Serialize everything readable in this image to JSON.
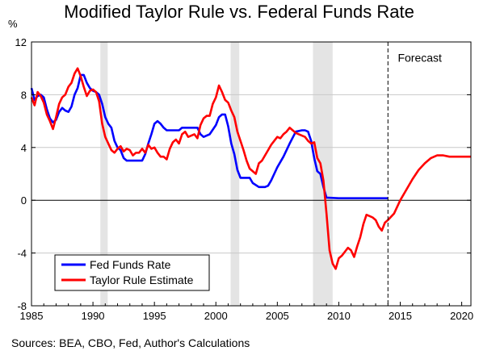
{
  "source_note": "Sources: BEA, CBO, Fed, Author's Calculations",
  "chart_data": {
    "type": "line",
    "title": "Modified Taylor Rule vs. Federal Funds Rate",
    "ylabel": "%",
    "xlabel": "",
    "xlim": [
      1985,
      2020.75
    ],
    "ylim": [
      -8,
      12
    ],
    "yticks": [
      -8,
      -4,
      0,
      4,
      8,
      12
    ],
    "xticks": [
      1985,
      1990,
      1995,
      2000,
      2005,
      2010,
      2015,
      2020
    ],
    "recessions": [
      [
        1990.6,
        1991.2
      ],
      [
        2001.2,
        2001.9
      ],
      [
        2007.9,
        2009.5
      ]
    ],
    "forecast_start": 2014.0,
    "annotations": [
      {
        "text": "Forecast",
        "x": 2014.8,
        "y": 10.8
      }
    ],
    "legend": {
      "position": "bottom-left"
    },
    "series": [
      {
        "name": "Fed Funds Rate",
        "color": "#0000ff",
        "points": [
          [
            1985.0,
            8.5
          ],
          [
            1985.25,
            7.6
          ],
          [
            1985.5,
            7.9
          ],
          [
            1985.75,
            8.0
          ],
          [
            1986.0,
            7.8
          ],
          [
            1986.25,
            6.9
          ],
          [
            1986.5,
            6.2
          ],
          [
            1986.75,
            5.9
          ],
          [
            1987.0,
            6.1
          ],
          [
            1987.25,
            6.7
          ],
          [
            1987.5,
            7.0
          ],
          [
            1987.75,
            6.8
          ],
          [
            1988.0,
            6.7
          ],
          [
            1988.25,
            7.1
          ],
          [
            1988.5,
            8.0
          ],
          [
            1988.75,
            8.5
          ],
          [
            1989.0,
            9.5
          ],
          [
            1989.25,
            9.5
          ],
          [
            1989.5,
            8.9
          ],
          [
            1989.75,
            8.5
          ],
          [
            1990.0,
            8.3
          ],
          [
            1990.25,
            8.2
          ],
          [
            1990.5,
            8.0
          ],
          [
            1990.75,
            7.3
          ],
          [
            1991.0,
            6.3
          ],
          [
            1991.25,
            5.8
          ],
          [
            1991.5,
            5.5
          ],
          [
            1991.75,
            4.5
          ],
          [
            1992.0,
            4.0
          ],
          [
            1992.25,
            3.8
          ],
          [
            1992.5,
            3.2
          ],
          [
            1992.75,
            3.0
          ],
          [
            1993.0,
            3.0
          ],
          [
            1993.5,
            3.0
          ],
          [
            1994.0,
            3.0
          ],
          [
            1994.25,
            3.5
          ],
          [
            1994.5,
            4.3
          ],
          [
            1994.75,
            5.0
          ],
          [
            1995.0,
            5.8
          ],
          [
            1995.25,
            6.0
          ],
          [
            1995.5,
            5.8
          ],
          [
            1995.75,
            5.5
          ],
          [
            1996.0,
            5.3
          ],
          [
            1996.5,
            5.3
          ],
          [
            1997.0,
            5.3
          ],
          [
            1997.25,
            5.5
          ],
          [
            1998.0,
            5.5
          ],
          [
            1998.5,
            5.5
          ],
          [
            1998.75,
            5.0
          ],
          [
            1999.0,
            4.8
          ],
          [
            1999.5,
            5.0
          ],
          [
            2000.0,
            5.7
          ],
          [
            2000.25,
            6.3
          ],
          [
            2000.5,
            6.5
          ],
          [
            2000.75,
            6.5
          ],
          [
            2001.0,
            5.6
          ],
          [
            2001.25,
            4.3
          ],
          [
            2001.5,
            3.5
          ],
          [
            2001.75,
            2.3
          ],
          [
            2002.0,
            1.7
          ],
          [
            2002.5,
            1.7
          ],
          [
            2002.75,
            1.7
          ],
          [
            2003.0,
            1.3
          ],
          [
            2003.5,
            1.0
          ],
          [
            2004.0,
            1.0
          ],
          [
            2004.25,
            1.1
          ],
          [
            2004.5,
            1.5
          ],
          [
            2004.75,
            2.0
          ],
          [
            2005.0,
            2.5
          ],
          [
            2005.5,
            3.3
          ],
          [
            2006.0,
            4.3
          ],
          [
            2006.5,
            5.2
          ],
          [
            2007.0,
            5.3
          ],
          [
            2007.25,
            5.3
          ],
          [
            2007.5,
            5.2
          ],
          [
            2007.75,
            4.5
          ],
          [
            2008.0,
            3.2
          ],
          [
            2008.25,
            2.2
          ],
          [
            2008.5,
            2.0
          ],
          [
            2008.75,
            1.0
          ],
          [
            2009.0,
            0.2
          ],
          [
            2010.0,
            0.15
          ],
          [
            2012.0,
            0.15
          ],
          [
            2014.0,
            0.15
          ]
        ]
      },
      {
        "name": "Taylor Rule Estimate",
        "color": "#ff0000",
        "points": [
          [
            1985.0,
            7.8
          ],
          [
            1985.25,
            7.2
          ],
          [
            1985.5,
            8.2
          ],
          [
            1985.75,
            7.9
          ],
          [
            1986.0,
            7.4
          ],
          [
            1986.25,
            6.5
          ],
          [
            1986.5,
            6.0
          ],
          [
            1986.75,
            5.4
          ],
          [
            1987.0,
            6.3
          ],
          [
            1987.25,
            7.3
          ],
          [
            1987.5,
            7.8
          ],
          [
            1987.75,
            8.0
          ],
          [
            1988.0,
            8.6
          ],
          [
            1988.25,
            8.9
          ],
          [
            1988.5,
            9.6
          ],
          [
            1988.75,
            10.0
          ],
          [
            1989.0,
            9.4
          ],
          [
            1989.25,
            8.6
          ],
          [
            1989.5,
            7.9
          ],
          [
            1989.75,
            8.3
          ],
          [
            1990.0,
            8.4
          ],
          [
            1990.25,
            8.2
          ],
          [
            1990.5,
            7.5
          ],
          [
            1990.75,
            5.8
          ],
          [
            1991.0,
            4.8
          ],
          [
            1991.25,
            4.3
          ],
          [
            1991.5,
            3.8
          ],
          [
            1991.75,
            3.6
          ],
          [
            1992.0,
            3.9
          ],
          [
            1992.25,
            4.1
          ],
          [
            1992.5,
            3.7
          ],
          [
            1992.75,
            3.9
          ],
          [
            1993.0,
            3.8
          ],
          [
            1993.25,
            3.4
          ],
          [
            1993.5,
            3.6
          ],
          [
            1993.75,
            3.6
          ],
          [
            1994.0,
            3.9
          ],
          [
            1994.25,
            3.6
          ],
          [
            1994.5,
            4.2
          ],
          [
            1994.75,
            3.9
          ],
          [
            1995.0,
            4.0
          ],
          [
            1995.25,
            3.6
          ],
          [
            1995.5,
            3.3
          ],
          [
            1995.75,
            3.3
          ],
          [
            1996.0,
            3.1
          ],
          [
            1996.25,
            3.9
          ],
          [
            1996.5,
            4.4
          ],
          [
            1996.75,
            4.6
          ],
          [
            1997.0,
            4.3
          ],
          [
            1997.25,
            5.0
          ],
          [
            1997.5,
            5.2
          ],
          [
            1997.75,
            4.8
          ],
          [
            1998.0,
            4.9
          ],
          [
            1998.25,
            5.0
          ],
          [
            1998.5,
            4.7
          ],
          [
            1998.75,
            5.7
          ],
          [
            1999.0,
            6.2
          ],
          [
            1999.25,
            6.4
          ],
          [
            1999.5,
            6.4
          ],
          [
            1999.75,
            7.3
          ],
          [
            2000.0,
            7.8
          ],
          [
            2000.25,
            8.7
          ],
          [
            2000.5,
            8.2
          ],
          [
            2000.75,
            7.6
          ],
          [
            2001.0,
            7.4
          ],
          [
            2001.25,
            6.8
          ],
          [
            2001.5,
            6.3
          ],
          [
            2001.75,
            5.2
          ],
          [
            2002.0,
            4.5
          ],
          [
            2002.25,
            3.8
          ],
          [
            2002.5,
            3.0
          ],
          [
            2002.75,
            2.4
          ],
          [
            2003.0,
            2.2
          ],
          [
            2003.25,
            2.0
          ],
          [
            2003.5,
            2.8
          ],
          [
            2003.75,
            3.0
          ],
          [
            2004.0,
            3.4
          ],
          [
            2004.25,
            3.8
          ],
          [
            2004.5,
            4.2
          ],
          [
            2004.75,
            4.5
          ],
          [
            2005.0,
            4.8
          ],
          [
            2005.25,
            4.7
          ],
          [
            2005.5,
            5.0
          ],
          [
            2005.75,
            5.2
          ],
          [
            2006.0,
            5.5
          ],
          [
            2006.25,
            5.3
          ],
          [
            2006.5,
            5.1
          ],
          [
            2006.75,
            5.0
          ],
          [
            2007.0,
            4.9
          ],
          [
            2007.25,
            4.8
          ],
          [
            2007.5,
            4.5
          ],
          [
            2007.75,
            4.3
          ],
          [
            2008.0,
            4.4
          ],
          [
            2008.25,
            3.2
          ],
          [
            2008.5,
            2.8
          ],
          [
            2008.75,
            1.5
          ],
          [
            2009.0,
            -1.0
          ],
          [
            2009.25,
            -3.8
          ],
          [
            2009.5,
            -4.8
          ],
          [
            2009.75,
            -5.2
          ],
          [
            2010.0,
            -4.4
          ],
          [
            2010.25,
            -4.2
          ],
          [
            2010.5,
            -3.9
          ],
          [
            2010.75,
            -3.6
          ],
          [
            2011.0,
            -3.8
          ],
          [
            2011.25,
            -4.3
          ],
          [
            2011.5,
            -3.5
          ],
          [
            2011.75,
            -2.8
          ],
          [
            2012.0,
            -1.8
          ],
          [
            2012.25,
            -1.1
          ],
          [
            2012.5,
            -1.2
          ],
          [
            2012.75,
            -1.3
          ],
          [
            2013.0,
            -1.5
          ],
          [
            2013.25,
            -2.0
          ],
          [
            2013.5,
            -2.3
          ],
          [
            2013.75,
            -1.7
          ],
          [
            2014.0,
            -1.5
          ],
          [
            2014.5,
            -1.0
          ],
          [
            2015.0,
            0.0
          ],
          [
            2015.5,
            0.8
          ],
          [
            2016.0,
            1.6
          ],
          [
            2016.5,
            2.3
          ],
          [
            2017.0,
            2.8
          ],
          [
            2017.5,
            3.2
          ],
          [
            2018.0,
            3.4
          ],
          [
            2018.5,
            3.4
          ],
          [
            2019.0,
            3.3
          ],
          [
            2019.5,
            3.3
          ],
          [
            2020.0,
            3.3
          ],
          [
            2020.75,
            3.3
          ]
        ]
      }
    ]
  }
}
